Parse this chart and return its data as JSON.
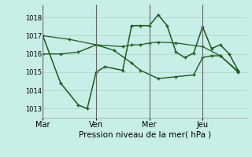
{
  "bg_color": "#c8eee8",
  "grid_color": "#b0d8cc",
  "line_color": "#1a5c1a",
  "marker": "+",
  "xlabel": "Pression niveau de la mer( hPa )",
  "ylim": [
    1012.5,
    1018.7
  ],
  "yticks": [
    1013,
    1014,
    1015,
    1016,
    1017,
    1018
  ],
  "xtick_labels": [
    "Mar",
    "Ven",
    "Mer",
    "Jeu"
  ],
  "xtick_positions": [
    0,
    3,
    6,
    9
  ],
  "vlines": [
    0,
    3,
    6,
    9
  ],
  "xlim": [
    0,
    11.5
  ],
  "figsize": [
    3.2,
    2.0
  ],
  "dpi": 100,
  "series": [
    {
      "x": [
        0,
        1.5,
        3,
        4.5,
        5,
        5.5,
        6,
        6.5,
        7.5,
        9,
        10,
        11
      ],
      "y": [
        1017.0,
        1016.8,
        1016.5,
        1016.4,
        1016.5,
        1016.5,
        1016.6,
        1016.65,
        1016.6,
        1016.4,
        1015.9,
        1015.0
      ]
    },
    {
      "x": [
        0,
        1,
        2,
        2.5,
        3,
        3.5,
        4.5,
        5,
        5.5,
        6,
        6.5,
        7,
        7.5,
        8,
        8.5,
        9,
        9.5,
        10,
        10.5,
        11
      ],
      "y": [
        1017.0,
        1014.4,
        1013.2,
        1013.0,
        1015.0,
        1015.3,
        1015.1,
        1017.55,
        1017.55,
        1017.55,
        1018.15,
        1017.55,
        1016.1,
        1015.8,
        1016.05,
        1017.5,
        1016.3,
        1016.5,
        1016.0,
        1015.1
      ]
    },
    {
      "x": [
        0,
        1,
        2,
        3,
        4,
        5,
        5.5,
        6.5,
        7.5,
        8.5,
        9,
        9.5,
        10,
        11
      ],
      "y": [
        1016.0,
        1016.0,
        1016.1,
        1016.5,
        1016.2,
        1015.5,
        1015.1,
        1014.65,
        1014.75,
        1014.85,
        1015.8,
        1015.9,
        1015.9,
        1015.05
      ]
    }
  ]
}
